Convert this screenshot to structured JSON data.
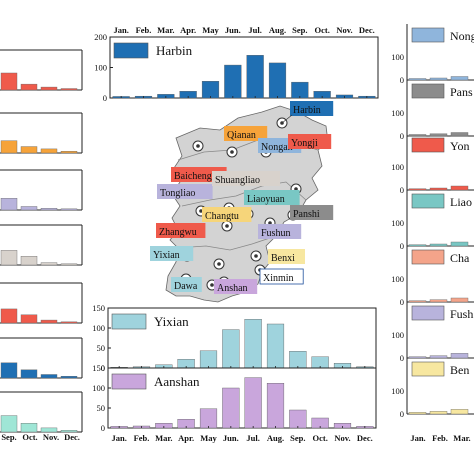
{
  "months": [
    "Jan.",
    "Feb.",
    "Mar.",
    "Apr.",
    "May",
    "Jun.",
    "Jul.",
    "Aug.",
    "Sep.",
    "Oct.",
    "Nov.",
    "Dec."
  ],
  "bottom_months": [
    "Jan.",
    "Feb.",
    "Mar.",
    "Apr.",
    "May",
    "Jun.",
    "Jul.",
    "Aug.",
    "Sep.",
    "Oct.",
    "Nov.",
    "Dec."
  ],
  "left_months": [
    "Sep.",
    "Oct.",
    "Nov.",
    "Dec."
  ],
  "right_months": [
    "Jan.",
    "Feb.",
    "Mar."
  ],
  "map_labels": [
    {
      "name": "Harbin",
      "bg": "#1f6fb3",
      "fg": "#ffffff"
    },
    {
      "name": "Baicheng",
      "bg": "#ef5a4b",
      "fg": "#ffffff"
    },
    {
      "name": "Qianan",
      "bg": "#f6a33a",
      "fg": "#111111"
    },
    {
      "name": "Nongan",
      "bg": "#8fb5dc",
      "fg": "#111111"
    },
    {
      "name": "Yongji",
      "bg": "#ef5a4b",
      "fg": "#ffffff"
    },
    {
      "name": "Tongliao",
      "bg": "#b8b3dc",
      "fg": "#111111"
    },
    {
      "name": "Shuangliao",
      "bg": "#d8d2cc",
      "fg": "#111111"
    },
    {
      "name": "Liaoyuan",
      "bg": "#79c7c4",
      "fg": "#111111"
    },
    {
      "name": "Panshi",
      "bg": "#8c8c8c",
      "fg": "#111111"
    },
    {
      "name": "Changtu",
      "bg": "#f6d57a",
      "fg": "#111111"
    },
    {
      "name": "Zhangwu",
      "bg": "#ef5a4b",
      "fg": "#ffffff"
    },
    {
      "name": "Fushun",
      "bg": "#b8b3dc",
      "fg": "#111111"
    },
    {
      "name": "Yixian",
      "bg": "#9fd3dd",
      "fg": "#111111"
    },
    {
      "name": "Benxi",
      "bg": "#f7e7a0",
      "fg": "#111111"
    },
    {
      "name": "Xinmin",
      "bg": "#ffffff",
      "fg": "#1f4f9c"
    },
    {
      "name": "Dawa",
      "bg": "#9fd3dd",
      "fg": "#111111"
    },
    {
      "name": "Anshan",
      "bg": "#c9a6dc",
      "fg": "#111111"
    }
  ],
  "right_labels": [
    {
      "name": "Nong",
      "color": "#8fb5dc"
    },
    {
      "name": "Pans",
      "color": "#8c8c8c"
    },
    {
      "name": "Yon",
      "color": "#ef5a4b"
    },
    {
      "name": "Liao",
      "color": "#79c7c4"
    },
    {
      "name": "Cha",
      "color": "#f4a48a"
    },
    {
      "name": "Fush",
      "color": "#b8b3dc"
    },
    {
      "name": "Ben",
      "color": "#f7e7a0"
    }
  ],
  "chart_data": [
    {
      "type": "bar",
      "title": "Harbin",
      "color": "#1f6fb3",
      "ylim": [
        0,
        200
      ],
      "yticks": [
        0,
        100,
        200
      ],
      "categories": [
        "Jan.",
        "Feb.",
        "Mar.",
        "Apr.",
        "May",
        "Jun.",
        "Jul.",
        "Aug.",
        "Sep.",
        "Oct.",
        "Nov.",
        "Dec."
      ],
      "values": [
        5,
        6,
        12,
        22,
        55,
        108,
        140,
        115,
        52,
        22,
        10,
        6
      ]
    },
    {
      "type": "bar",
      "title": "Yixian",
      "color": "#9fd3dd",
      "ylim": [
        0,
        150
      ],
      "yticks": [
        0,
        50,
        100,
        150
      ],
      "categories": [
        "Jan.",
        "Feb.",
        "Mar.",
        "Apr.",
        "May",
        "Jun.",
        "Jul.",
        "Aug.",
        "Sep.",
        "Oct.",
        "Nov.",
        "Dec."
      ],
      "values": [
        2,
        3,
        8,
        22,
        43,
        96,
        122,
        110,
        42,
        28,
        12,
        3
      ]
    },
    {
      "type": "bar",
      "title": "Aanshan",
      "color": "#c9a6dc",
      "ylim": [
        0,
        150
      ],
      "yticks": [
        0,
        50,
        100,
        150
      ],
      "categories": [
        "Jan.",
        "Feb.",
        "Mar.",
        "Apr.",
        "May",
        "Jun.",
        "Jul.",
        "Aug.",
        "Sep.",
        "Oct.",
        "Nov.",
        "Dec."
      ],
      "values": [
        4,
        5,
        12,
        22,
        48,
        100,
        126,
        112,
        45,
        25,
        12,
        4
      ]
    },
    {
      "type": "bar",
      "color": "#ef5a4b",
      "ylim": [
        0,
        150
      ],
      "categories": [
        "Sep.",
        "Oct.",
        "Nov.",
        "Dec."
      ],
      "values": [
        58,
        20,
        10,
        5
      ]
    },
    {
      "type": "bar",
      "color": "#f6a33a",
      "ylim": [
        0,
        150
      ],
      "categories": [
        "Sep.",
        "Oct.",
        "Nov.",
        "Dec."
      ],
      "values": [
        42,
        22,
        14,
        6
      ]
    },
    {
      "type": "bar",
      "color": "#b8b3dc",
      "ylim": [
        0,
        150
      ],
      "categories": [
        "Sep.",
        "Oct.",
        "Nov.",
        "Dec."
      ],
      "values": [
        40,
        12,
        6,
        4
      ]
    },
    {
      "type": "bar",
      "color": "#d8d2cc",
      "ylim": [
        0,
        150
      ],
      "categories": [
        "Sep.",
        "Oct.",
        "Nov.",
        "Dec."
      ],
      "values": [
        50,
        30,
        8,
        4
      ]
    },
    {
      "type": "bar",
      "color": "#ef5a4b",
      "ylim": [
        0,
        150
      ],
      "categories": [
        "Sep.",
        "Oct.",
        "Nov.",
        "Dec."
      ],
      "values": [
        48,
        28,
        10,
        4
      ]
    },
    {
      "type": "bar",
      "color": "#1f6fb3",
      "ylim": [
        0,
        150
      ],
      "categories": [
        "Sep.",
        "Oct.",
        "Nov.",
        "Dec."
      ],
      "values": [
        52,
        28,
        12,
        6
      ]
    },
    {
      "type": "bar",
      "color": "#9fe6d6",
      "ylim": [
        0,
        150
      ],
      "categories": [
        "Sep.",
        "Oct.",
        "Nov.",
        "Dec."
      ],
      "values": [
        56,
        30,
        14,
        6
      ]
    },
    {
      "type": "bar",
      "color": "#8fb5dc",
      "ylim": [
        0,
        200
      ],
      "yticks": [
        0,
        100
      ],
      "categories": [
        "Jan.",
        "Feb.",
        "Mar."
      ],
      "values": [
        6,
        8,
        14
      ]
    },
    {
      "type": "bar",
      "color": "#8c8c8c",
      "ylim": [
        0,
        200
      ],
      "yticks": [
        0,
        100
      ],
      "categories": [
        "Jan.",
        "Feb.",
        "Mar."
      ],
      "values": [
        6,
        9,
        14
      ]
    },
    {
      "type": "bar",
      "color": "#ef5a4b",
      "ylim": [
        0,
        150
      ],
      "yticks": [
        0,
        100
      ],
      "categories": [
        "Jan.",
        "Feb.",
        "Mar."
      ],
      "values": [
        4,
        6,
        12
      ]
    },
    {
      "type": "bar",
      "color": "#79c7c4",
      "ylim": [
        0,
        150
      ],
      "yticks": [
        0,
        100
      ],
      "categories": [
        "Jan.",
        "Feb.",
        "Mar."
      ],
      "values": [
        4,
        6,
        12
      ]
    },
    {
      "type": "bar",
      "color": "#f4a48a",
      "ylim": [
        0,
        150
      ],
      "yticks": [
        0,
        100
      ],
      "categories": [
        "Jan.",
        "Feb.",
        "Mar."
      ],
      "values": [
        4,
        7,
        12
      ]
    },
    {
      "type": "bar",
      "color": "#b8b3dc",
      "ylim": [
        0,
        150
      ],
      "yticks": [
        0,
        100
      ],
      "categories": [
        "Jan.",
        "Feb.",
        "Mar."
      ],
      "values": [
        4,
        7,
        14
      ]
    },
    {
      "type": "bar",
      "color": "#f7e7a0",
      "ylim": [
        0,
        150
      ],
      "yticks": [
        0,
        100
      ],
      "categories": [
        "Jan.",
        "Feb.",
        "Mar."
      ],
      "values": [
        5,
        8,
        14
      ]
    }
  ]
}
